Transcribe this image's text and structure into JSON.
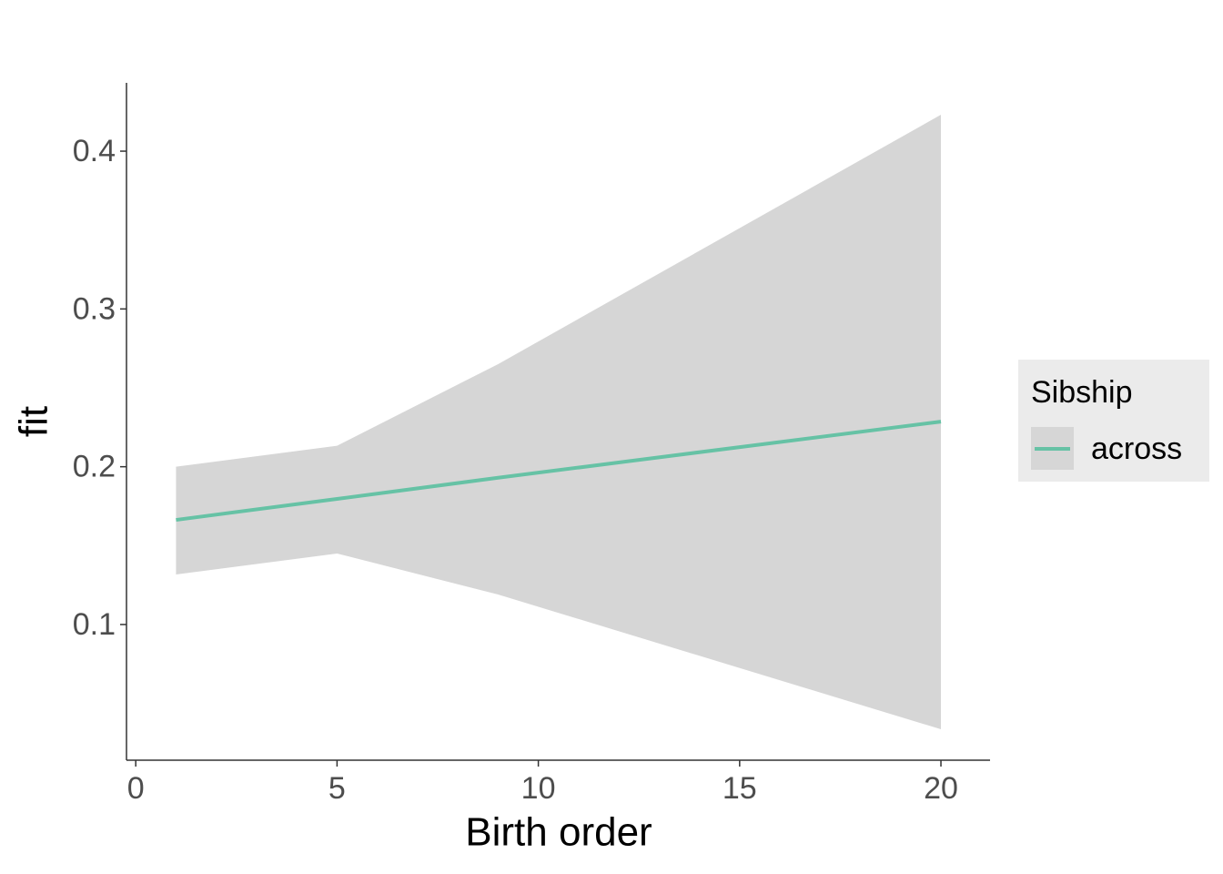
{
  "chart_data": {
    "type": "line",
    "x_label": "Birth order",
    "y_label": "fit",
    "x": [
      1,
      5,
      9,
      20
    ],
    "series": [
      {
        "name": "across",
        "color": "#66c2a5",
        "values": [
          0.1663,
          0.1796,
          0.193,
          0.2286
        ],
        "lower": [
          0.1317,
          0.145,
          0.119,
          0.0336
        ],
        "upper": [
          0.2,
          0.2133,
          0.265,
          0.4231
        ]
      }
    ],
    "ribbon_color": "#d6d6d6",
    "xlim": [
      -0.23,
      21.22
    ],
    "xticks": [
      0,
      5,
      10,
      15,
      20
    ],
    "ylim": [
      0.014,
      0.4433
    ],
    "yticks": [
      0.1,
      0.2,
      0.3,
      0.4
    ],
    "legend_title": "Sibship",
    "legend": "right",
    "grid": false
  }
}
